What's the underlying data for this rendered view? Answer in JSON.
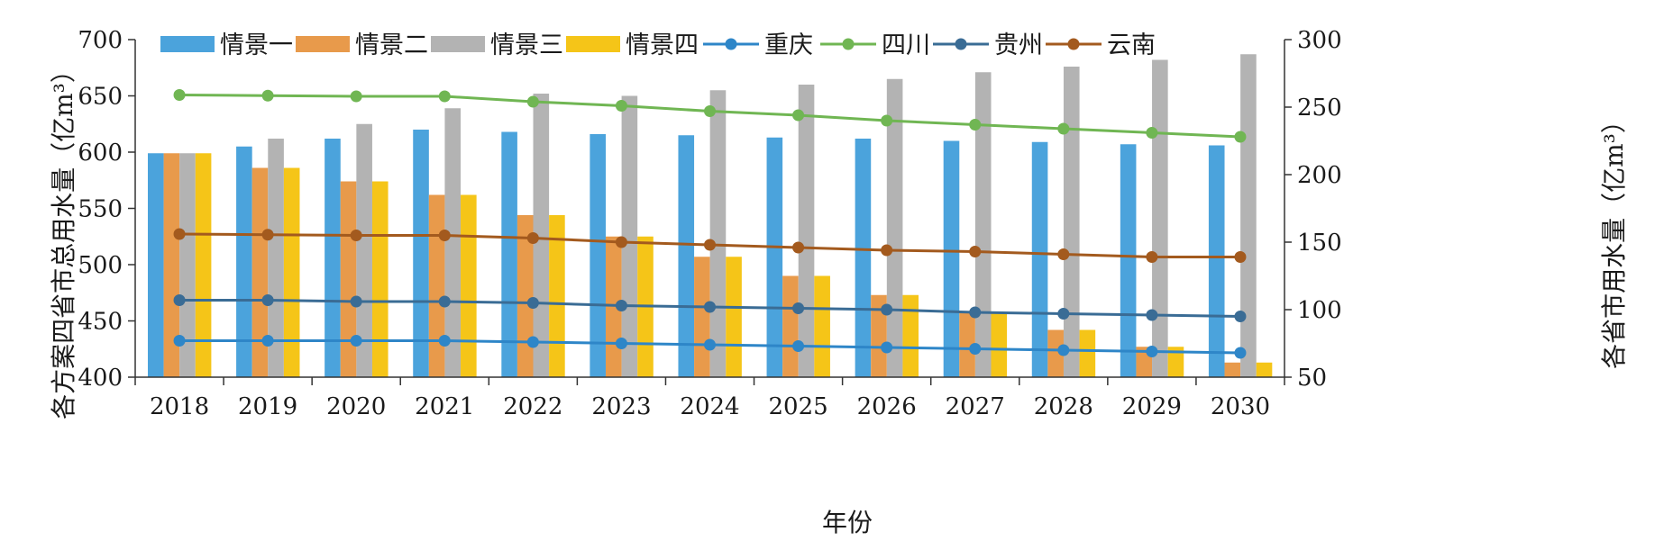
{
  "chart_data": {
    "type": "bar+line",
    "title": "",
    "xlabel": "年份",
    "ylabel_left": "各方案四省市总用水量（亿m³）",
    "ylabel_right": "各省市用水量（亿m³）",
    "ylim_left": [
      400,
      700
    ],
    "ylim_right": [
      50,
      300
    ],
    "yticks_left": [
      "400",
      "450",
      "500",
      "550",
      "600",
      "650",
      "700"
    ],
    "yticks_right": [
      "50",
      "100",
      "150",
      "200",
      "250",
      "300"
    ],
    "categories": [
      "2018",
      "2019",
      "2020",
      "2021",
      "2022",
      "2023",
      "2024",
      "2025",
      "2026",
      "2027",
      "2028",
      "2029",
      "2030"
    ],
    "legend_position": "top",
    "bar_series": [
      {
        "name": "情景一",
        "color": "#4BA3DC",
        "axis": "left",
        "values": [
          599,
          605,
          612,
          620,
          618,
          616,
          615,
          613,
          612,
          610,
          609,
          607,
          606
        ]
      },
      {
        "name": "情景二",
        "color": "#E89A4B",
        "axis": "left",
        "values": [
          599,
          586,
          574,
          562,
          544,
          525,
          507,
          490,
          473,
          457,
          442,
          427,
          413
        ]
      },
      {
        "name": "情景三",
        "color": "#B3B3B3",
        "axis": "left",
        "values": [
          599,
          612,
          625,
          639,
          652,
          650,
          655,
          660,
          665,
          671,
          676,
          682,
          687
        ]
      },
      {
        "name": "情景四",
        "color": "#F5C518",
        "axis": "left",
        "values": [
          599,
          586,
          574,
          562,
          544,
          525,
          507,
          490,
          473,
          457,
          442,
          427,
          413
        ]
      }
    ],
    "line_series": [
      {
        "name": "重庆",
        "color": "#2E86C8",
        "axis": "right",
        "values": [
          77,
          77,
          77,
          77,
          76,
          75,
          74,
          73,
          72,
          71,
          70,
          69,
          68
        ]
      },
      {
        "name": "四川",
        "color": "#70B653",
        "axis": "right",
        "values": [
          259,
          258.5,
          258,
          258,
          254,
          251,
          247,
          244,
          240,
          237,
          234,
          231,
          228
        ]
      },
      {
        "name": "贵州",
        "color": "#3A6C95",
        "axis": "right",
        "values": [
          107,
          107,
          106,
          106,
          105,
          103,
          102,
          101,
          100,
          98,
          97,
          96,
          95
        ]
      },
      {
        "name": "云南",
        "color": "#A35A1E",
        "axis": "right",
        "values": [
          156,
          155.5,
          155,
          155,
          153,
          150,
          148,
          146,
          144,
          143,
          141,
          139,
          139
        ]
      }
    ]
  }
}
